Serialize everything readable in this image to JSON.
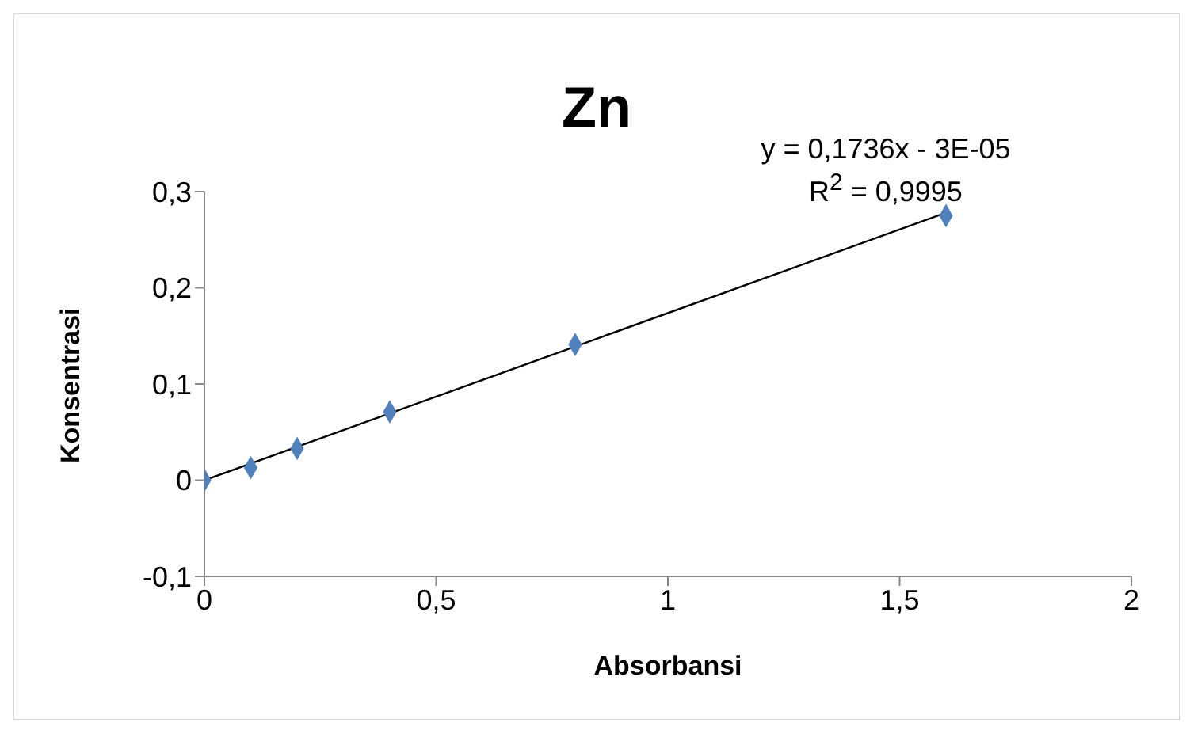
{
  "chart_data": {
    "type": "scatter",
    "title": "Zn",
    "xlabel": "Absorbansi",
    "ylabel": "Konsentrasi",
    "annotations": [
      "y = 0,1736x - 3E-05",
      "R$^{2}$ = 0,9995"
    ],
    "x": [
      0,
      0.1,
      0.2,
      0.4,
      0.8,
      1.6
    ],
    "series": [
      {
        "color": "#4f81bd",
        "marker": "diamond",
        "values": [
          0,
          0.013,
          0.033,
          0.071,
          0.141,
          0.275
        ]
      },
      {
        "type": "line",
        "color": "#000000",
        "marker": "none",
        "x": [
          0,
          1.6
        ],
        "values": [
          0,
          0.278
        ]
      }
    ],
    "xlim": [
      0,
      2
    ],
    "xticks": [
      {
        "value": 0,
        "label": "0"
      },
      {
        "value": 0.5,
        "label": "0,5"
      },
      {
        "value": 1,
        "label": "1"
      },
      {
        "value": 1.5,
        "label": "1,5"
      },
      {
        "value": 2,
        "label": "2"
      }
    ],
    "ylim": [
      -0.1,
      0.3
    ],
    "yticks": [
      {
        "value": -0.1,
        "label": "-0,1"
      },
      {
        "value": 0,
        "label": "0"
      },
      {
        "value": 0.1,
        "label": "0,1"
      },
      {
        "value": 0.2,
        "label": "0,2"
      },
      {
        "value": 0.3,
        "label": "0,3"
      }
    ],
    "grid": false,
    "legend": false
  }
}
